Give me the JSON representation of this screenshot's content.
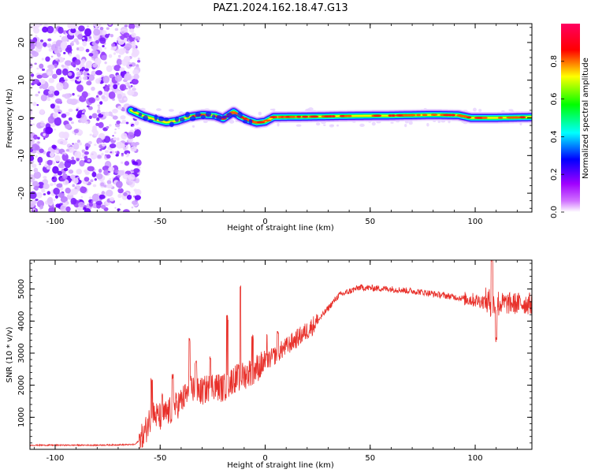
{
  "title": "PAZ1.2024.162.18.47.G13",
  "chart_data": [
    {
      "type": "heatmap",
      "xlabel": "Height of straight line (km)",
      "ylabel": "Frequency (Hz)",
      "xlim": [
        -112,
        127
      ],
      "ylim": [
        -25,
        25
      ],
      "x_ticks": [
        -100,
        -50,
        0,
        50,
        100
      ],
      "x_tick_labels": [
        "-100",
        "-50",
        "0",
        "50",
        "100"
      ],
      "y_ticks": [
        -20,
        -10,
        0,
        10,
        20
      ],
      "y_tick_labels": [
        "-20",
        "-10",
        "0",
        "10",
        "20"
      ],
      "noise_region_x": [
        -112,
        -63
      ],
      "signal_start_x": -64,
      "frequency_trace": [
        {
          "x": -64,
          "y": 2.0
        },
        {
          "x": -58,
          "y": 0.5
        },
        {
          "x": -52,
          "y": -0.5
        },
        {
          "x": -47,
          "y": -1.2
        },
        {
          "x": -42,
          "y": -0.8
        },
        {
          "x": -36,
          "y": 0.3
        },
        {
          "x": -30,
          "y": 0.8
        },
        {
          "x": -24,
          "y": 0.6
        },
        {
          "x": -20,
          "y": -0.2
        },
        {
          "x": -15,
          "y": 1.6
        },
        {
          "x": -12,
          "y": 0.4
        },
        {
          "x": -8,
          "y": -0.6
        },
        {
          "x": -4,
          "y": -1.3
        },
        {
          "x": 0,
          "y": -1.0
        },
        {
          "x": 4,
          "y": 0.2
        },
        {
          "x": 20,
          "y": 0.3
        },
        {
          "x": 40,
          "y": 0.5
        },
        {
          "x": 60,
          "y": 0.6
        },
        {
          "x": 80,
          "y": 0.8
        },
        {
          "x": 92,
          "y": 0.7
        },
        {
          "x": 98,
          "y": 0.0
        },
        {
          "x": 110,
          "y": 0.0
        },
        {
          "x": 127,
          "y": 0.2
        }
      ],
      "colorbar": {
        "label": "Normalized spectral amplitude",
        "range": [
          0,
          1
        ],
        "ticks": [
          0.0,
          0.2,
          0.4,
          0.6,
          0.8
        ],
        "tick_labels": [
          "0.0",
          "0.2",
          "0.4",
          "0.6",
          "0.8"
        ],
        "colors": [
          "#ffffff",
          "#a000ff",
          "#0000ff",
          "#00ffff",
          "#00ff00",
          "#ffff00",
          "#ff0000",
          "#ff0060"
        ]
      }
    },
    {
      "type": "line",
      "xlabel": "Height of straight line (km)",
      "ylabel": "SNR (10 * v/v)",
      "xlim": [
        -112,
        127
      ],
      "ylim": [
        0,
        5900
      ],
      "x_ticks": [
        -100,
        -50,
        0,
        50,
        100
      ],
      "x_tick_labels": [
        "-100",
        "-50",
        "0",
        "50",
        "100"
      ],
      "y_ticks": [
        1000,
        2000,
        3000,
        4000,
        5000
      ],
      "y_tick_labels": [
        "1000",
        "2000",
        "3000",
        "4000",
        "5000"
      ],
      "color": "#e8302a",
      "baseline": [
        {
          "x": -112,
          "y": 130
        },
        {
          "x": -80,
          "y": 130
        },
        {
          "x": -62,
          "y": 150
        },
        {
          "x": -58,
          "y": 400
        },
        {
          "x": -54,
          "y": 1100
        },
        {
          "x": -50,
          "y": 1000
        },
        {
          "x": -45,
          "y": 1200
        },
        {
          "x": -40,
          "y": 1500
        },
        {
          "x": -35,
          "y": 1900
        },
        {
          "x": -30,
          "y": 1800
        },
        {
          "x": -25,
          "y": 2000
        },
        {
          "x": -20,
          "y": 1900
        },
        {
          "x": -15,
          "y": 2200
        },
        {
          "x": -10,
          "y": 2300
        },
        {
          "x": -5,
          "y": 2500
        },
        {
          "x": 0,
          "y": 2700
        },
        {
          "x": 10,
          "y": 3200
        },
        {
          "x": 20,
          "y": 3700
        },
        {
          "x": 25,
          "y": 4000
        },
        {
          "x": 30,
          "y": 4400
        },
        {
          "x": 35,
          "y": 4800
        },
        {
          "x": 45,
          "y": 5050
        },
        {
          "x": 60,
          "y": 5000
        },
        {
          "x": 75,
          "y": 4900
        },
        {
          "x": 90,
          "y": 4750
        },
        {
          "x": 100,
          "y": 4650
        },
        {
          "x": 110,
          "y": 4550
        },
        {
          "x": 127,
          "y": 4550
        }
      ],
      "peaks": [
        {
          "x": -54,
          "y": 2200
        },
        {
          "x": -49,
          "y": 1800
        },
        {
          "x": -44,
          "y": 2400
        },
        {
          "x": -36,
          "y": 3550
        },
        {
          "x": -33,
          "y": 2800
        },
        {
          "x": -26,
          "y": 2900
        },
        {
          "x": -18,
          "y": 4200
        },
        {
          "x": -12,
          "y": 5150
        },
        {
          "x": -6,
          "y": 3600
        },
        {
          "x": 1,
          "y": 3700
        },
        {
          "x": 6,
          "y": 3800
        },
        {
          "x": 108,
          "y": 6000
        },
        {
          "x": 110,
          "y": 3500
        }
      ]
    }
  ]
}
